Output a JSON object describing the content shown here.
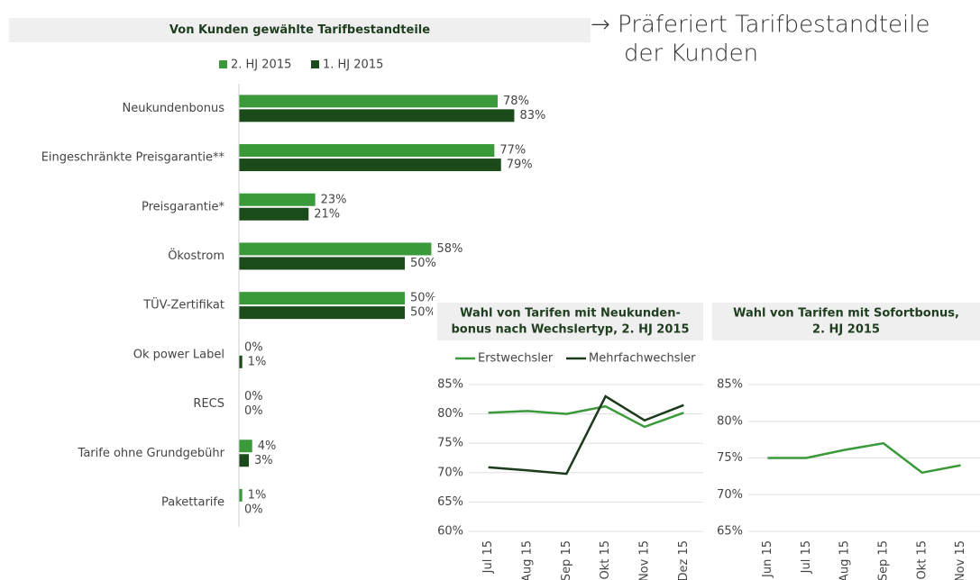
{
  "headline": [
    "→ Präferiert Tarifbestandteile",
    "der Kunden"
  ],
  "chart_data": [
    {
      "type": "hbar",
      "title": "Von Kunden gewählte Tarifbestandteile",
      "categories": [
        "Neukundenbonus",
        "Eingeschränkte Preisgarantie**",
        "Preisgarantie*",
        "Ökostrom",
        "TÜV-Zertifikat",
        "Ok power Label",
        "RECS",
        "Tarife ohne Grundgebühr",
        "Pakettarife"
      ],
      "xlim": [
        0,
        100
      ],
      "series": [
        {
          "name": "2. HJ 2015",
          "color": "#3a9a3a",
          "values": [
            78,
            77,
            23,
            58,
            50,
            0,
            0,
            4,
            1
          ],
          "value_labels": [
            "78%",
            "77%",
            "23%",
            "58%",
            "50%",
            "0%",
            "0%",
            "4%",
            "1%"
          ]
        },
        {
          "name": "1. HJ 2015",
          "color": "#1b4a1b",
          "values": [
            83,
            79,
            21,
            50,
            50,
            1,
            0,
            3,
            0
          ],
          "value_labels": [
            "83%",
            "79%",
            "21%",
            "50%",
            "50%",
            "1%",
            "0%",
            "3%",
            "0%"
          ]
        }
      ]
    },
    {
      "type": "line",
      "title": [
        "Wahl von Tarifen mit Neukunden-",
        "bonus nach Wechslertyp, 2. HJ 2015"
      ],
      "categories": [
        "Jul 15",
        "Aug 15",
        "Sep 15",
        "Okt 15",
        "Nov 15",
        "Dez 15"
      ],
      "ylim": [
        60,
        85
      ],
      "yticks": [
        {
          "value": 60,
          "label": "60%"
        },
        {
          "value": 65,
          "label": "65%"
        },
        {
          "value": 70,
          "label": "70%"
        },
        {
          "value": 75,
          "label": "75%"
        },
        {
          "value": 80,
          "label": "80%"
        },
        {
          "value": 85,
          "label": "85%"
        }
      ],
      "grid": true,
      "series": [
        {
          "name": "Erstwechsler",
          "color": "#3a9a3a",
          "values": [
            80.2,
            80.5,
            80,
            81.3,
            77.8,
            80.2
          ]
        },
        {
          "name": "Mehrfachwechsler",
          "color": "#1b3a1b",
          "values": [
            70.9,
            70.4,
            69.8,
            83,
            78.9,
            81.5
          ]
        }
      ]
    },
    {
      "type": "line",
      "title": [
        "Wahl von Tarifen mit Sofortbonus,",
        "2. HJ 2015"
      ],
      "categories": [
        "Jun 15",
        "Jul 15",
        "Aug 15",
        "Sep 15",
        "Okt 15",
        "Nov 15"
      ],
      "ylim": [
        65,
        85
      ],
      "yticks": [
        {
          "value": 65,
          "label": "65%"
        },
        {
          "value": 70,
          "label": "70%"
        },
        {
          "value": 75,
          "label": "75%"
        },
        {
          "value": 80,
          "label": "80%"
        },
        {
          "value": 85,
          "label": "85%"
        }
      ],
      "grid": true,
      "color": "#3a9a3a",
      "values": [
        75,
        75,
        76.1,
        77,
        73,
        74
      ]
    }
  ]
}
